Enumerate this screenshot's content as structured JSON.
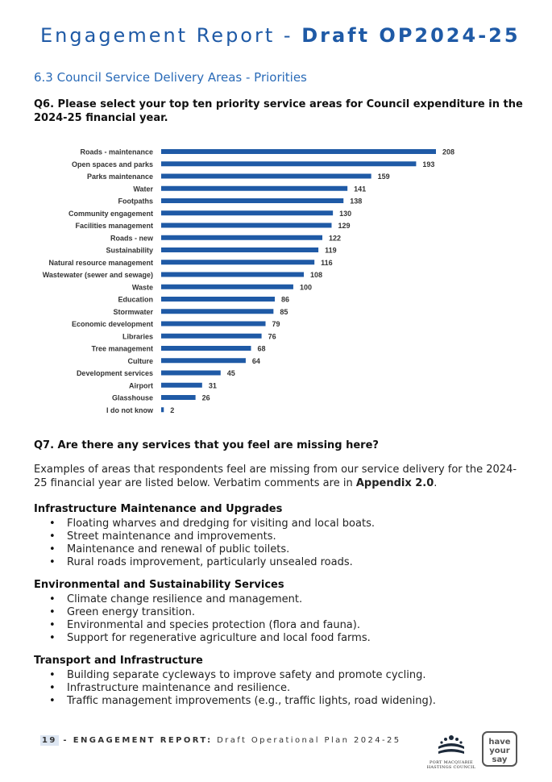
{
  "header": {
    "title_prefix": "Engagement Report - ",
    "title_bold": "Draft OP2024-25"
  },
  "section": {
    "title": "6.3 Council Service Delivery Areas - Priorities"
  },
  "q6": {
    "text": "Q6. Please select your top ten priority service areas for Council expenditure in the 2024-25 financial year."
  },
  "chart_data": {
    "type": "bar",
    "orientation": "horizontal",
    "categories": [
      "Roads - maintenance",
      "Open spaces and parks",
      "Parks maintenance",
      "Water",
      "Footpaths",
      "Community engagement",
      "Facilities management",
      "Roads - new",
      "Sustainability",
      "Natural resource management",
      "Wastewater (sewer and sewage)",
      "Waste",
      "Education",
      "Stormwater",
      "Economic development",
      "Libraries",
      "Tree management",
      "Culture",
      "Development services",
      "Airport",
      "Glasshouse",
      "I do not know"
    ],
    "values": [
      208,
      193,
      159,
      141,
      138,
      130,
      129,
      122,
      119,
      116,
      108,
      100,
      86,
      85,
      79,
      76,
      68,
      64,
      45,
      31,
      26,
      2
    ],
    "bar_color": "#1f5aa6",
    "xlim": [
      0,
      208
    ],
    "grid": false
  },
  "q7": {
    "text": "Q7. Are there any services that you feel are missing here?",
    "intro_before": "Examples of areas that respondents feel are missing from our service delivery for the 2024-25 financial year are listed below. Verbatim comments are in ",
    "intro_bold": "Appendix 2.0",
    "intro_after": "."
  },
  "groups": [
    {
      "title": "Infrastructure Maintenance and Upgrades",
      "items": [
        "Floating wharves and dredging for visiting and local boats.",
        "Street maintenance and improvements.",
        "Maintenance and renewal of public toilets.",
        "Rural roads improvement, particularly unsealed roads."
      ]
    },
    {
      "title": "Environmental and Sustainability Services",
      "items": [
        "Climate change resilience and management.",
        "Green energy transition.",
        "Environmental and species protection (flora and fauna).",
        "Support for regenerative agriculture and local food farms."
      ]
    },
    {
      "title": "Transport and Infrastructure",
      "items": [
        "Building separate cycleways to improve safety and promote cycling.",
        "Infrastructure maintenance and resilience.",
        "Traffic management improvements (e.g., traffic lights, road widening)."
      ]
    }
  ],
  "footer": {
    "page": "19",
    "label": "- ENGAGEMENT REPORT:",
    "sub": "Draft Operational Plan 2024-25"
  },
  "logos": {
    "council_name_1": "PORT MACQUARIE",
    "council_name_2": "HASTINGS COUNCIL",
    "hys_line_1": "have",
    "hys_line_2": "your say"
  }
}
